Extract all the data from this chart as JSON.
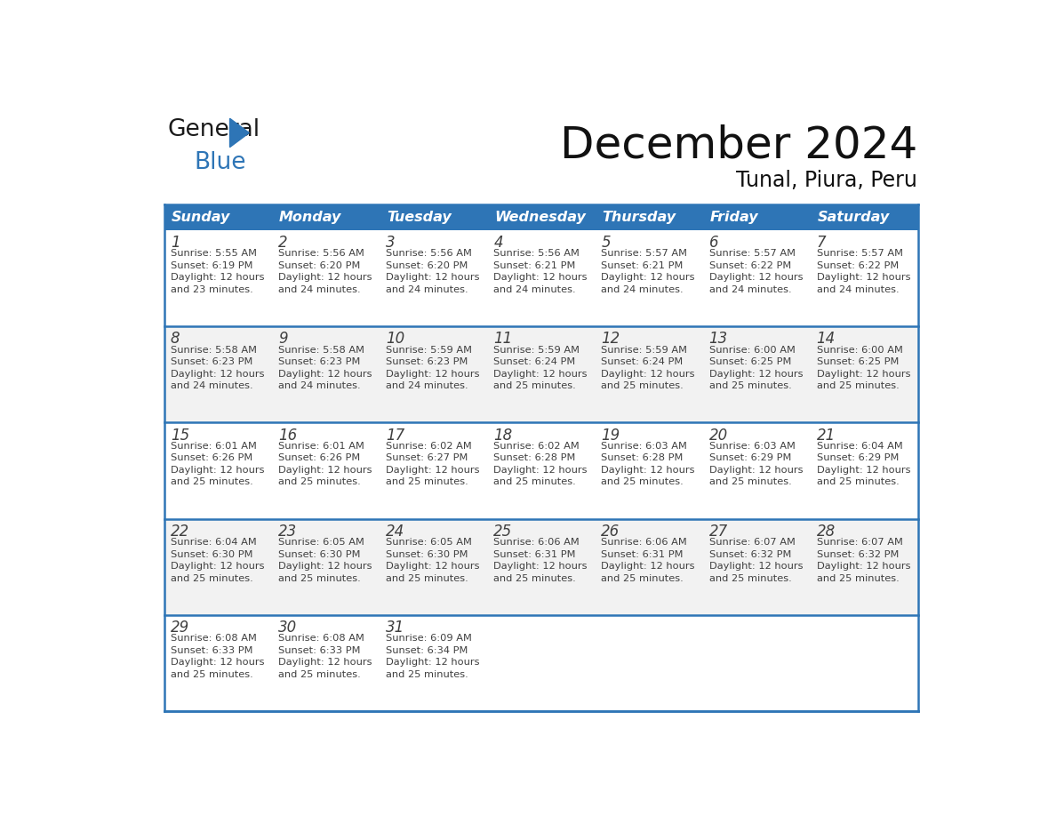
{
  "title": "December 2024",
  "subtitle": "Tunal, Piura, Peru",
  "header_color": "#2E75B6",
  "header_text_color": "#FFFFFF",
  "cell_bg_color": "#FFFFFF",
  "alt_cell_bg_color": "#F2F2F2",
  "border_color": "#2E75B6",
  "text_color": "#404040",
  "days_of_week": [
    "Sunday",
    "Monday",
    "Tuesday",
    "Wednesday",
    "Thursday",
    "Friday",
    "Saturday"
  ],
  "calendar_data": [
    [
      {
        "day": "1",
        "sunrise": "5:55 AM",
        "sunset": "6:19 PM",
        "daylight_h": "12 hours",
        "daylight_m": "and 23 minutes."
      },
      {
        "day": "2",
        "sunrise": "5:56 AM",
        "sunset": "6:20 PM",
        "daylight_h": "12 hours",
        "daylight_m": "and 24 minutes."
      },
      {
        "day": "3",
        "sunrise": "5:56 AM",
        "sunset": "6:20 PM",
        "daylight_h": "12 hours",
        "daylight_m": "and 24 minutes."
      },
      {
        "day": "4",
        "sunrise": "5:56 AM",
        "sunset": "6:21 PM",
        "daylight_h": "12 hours",
        "daylight_m": "and 24 minutes."
      },
      {
        "day": "5",
        "sunrise": "5:57 AM",
        "sunset": "6:21 PM",
        "daylight_h": "12 hours",
        "daylight_m": "and 24 minutes."
      },
      {
        "day": "6",
        "sunrise": "5:57 AM",
        "sunset": "6:22 PM",
        "daylight_h": "12 hours",
        "daylight_m": "and 24 minutes."
      },
      {
        "day": "7",
        "sunrise": "5:57 AM",
        "sunset": "6:22 PM",
        "daylight_h": "12 hours",
        "daylight_m": "and 24 minutes."
      }
    ],
    [
      {
        "day": "8",
        "sunrise": "5:58 AM",
        "sunset": "6:23 PM",
        "daylight_h": "12 hours",
        "daylight_m": "and 24 minutes."
      },
      {
        "day": "9",
        "sunrise": "5:58 AM",
        "sunset": "6:23 PM",
        "daylight_h": "12 hours",
        "daylight_m": "and 24 minutes."
      },
      {
        "day": "10",
        "sunrise": "5:59 AM",
        "sunset": "6:23 PM",
        "daylight_h": "12 hours",
        "daylight_m": "and 24 minutes."
      },
      {
        "day": "11",
        "sunrise": "5:59 AM",
        "sunset": "6:24 PM",
        "daylight_h": "12 hours",
        "daylight_m": "and 25 minutes."
      },
      {
        "day": "12",
        "sunrise": "5:59 AM",
        "sunset": "6:24 PM",
        "daylight_h": "12 hours",
        "daylight_m": "and 25 minutes."
      },
      {
        "day": "13",
        "sunrise": "6:00 AM",
        "sunset": "6:25 PM",
        "daylight_h": "12 hours",
        "daylight_m": "and 25 minutes."
      },
      {
        "day": "14",
        "sunrise": "6:00 AM",
        "sunset": "6:25 PM",
        "daylight_h": "12 hours",
        "daylight_m": "and 25 minutes."
      }
    ],
    [
      {
        "day": "15",
        "sunrise": "6:01 AM",
        "sunset": "6:26 PM",
        "daylight_h": "12 hours",
        "daylight_m": "and 25 minutes."
      },
      {
        "day": "16",
        "sunrise": "6:01 AM",
        "sunset": "6:26 PM",
        "daylight_h": "12 hours",
        "daylight_m": "and 25 minutes."
      },
      {
        "day": "17",
        "sunrise": "6:02 AM",
        "sunset": "6:27 PM",
        "daylight_h": "12 hours",
        "daylight_m": "and 25 minutes."
      },
      {
        "day": "18",
        "sunrise": "6:02 AM",
        "sunset": "6:28 PM",
        "daylight_h": "12 hours",
        "daylight_m": "and 25 minutes."
      },
      {
        "day": "19",
        "sunrise": "6:03 AM",
        "sunset": "6:28 PM",
        "daylight_h": "12 hours",
        "daylight_m": "and 25 minutes."
      },
      {
        "day": "20",
        "sunrise": "6:03 AM",
        "sunset": "6:29 PM",
        "daylight_h": "12 hours",
        "daylight_m": "and 25 minutes."
      },
      {
        "day": "21",
        "sunrise": "6:04 AM",
        "sunset": "6:29 PM",
        "daylight_h": "12 hours",
        "daylight_m": "and 25 minutes."
      }
    ],
    [
      {
        "day": "22",
        "sunrise": "6:04 AM",
        "sunset": "6:30 PM",
        "daylight_h": "12 hours",
        "daylight_m": "and 25 minutes."
      },
      {
        "day": "23",
        "sunrise": "6:05 AM",
        "sunset": "6:30 PM",
        "daylight_h": "12 hours",
        "daylight_m": "and 25 minutes."
      },
      {
        "day": "24",
        "sunrise": "6:05 AM",
        "sunset": "6:30 PM",
        "daylight_h": "12 hours",
        "daylight_m": "and 25 minutes."
      },
      {
        "day": "25",
        "sunrise": "6:06 AM",
        "sunset": "6:31 PM",
        "daylight_h": "12 hours",
        "daylight_m": "and 25 minutes."
      },
      {
        "day": "26",
        "sunrise": "6:06 AM",
        "sunset": "6:31 PM",
        "daylight_h": "12 hours",
        "daylight_m": "and 25 minutes."
      },
      {
        "day": "27",
        "sunrise": "6:07 AM",
        "sunset": "6:32 PM",
        "daylight_h": "12 hours",
        "daylight_m": "and 25 minutes."
      },
      {
        "day": "28",
        "sunrise": "6:07 AM",
        "sunset": "6:32 PM",
        "daylight_h": "12 hours",
        "daylight_m": "and 25 minutes."
      }
    ],
    [
      {
        "day": "29",
        "sunrise": "6:08 AM",
        "sunset": "6:33 PM",
        "daylight_h": "12 hours",
        "daylight_m": "and 25 minutes."
      },
      {
        "day": "30",
        "sunrise": "6:08 AM",
        "sunset": "6:33 PM",
        "daylight_h": "12 hours",
        "daylight_m": "and 25 minutes."
      },
      {
        "day": "31",
        "sunrise": "6:09 AM",
        "sunset": "6:34 PM",
        "daylight_h": "12 hours",
        "daylight_m": "and 25 minutes."
      },
      null,
      null,
      null,
      null
    ]
  ]
}
